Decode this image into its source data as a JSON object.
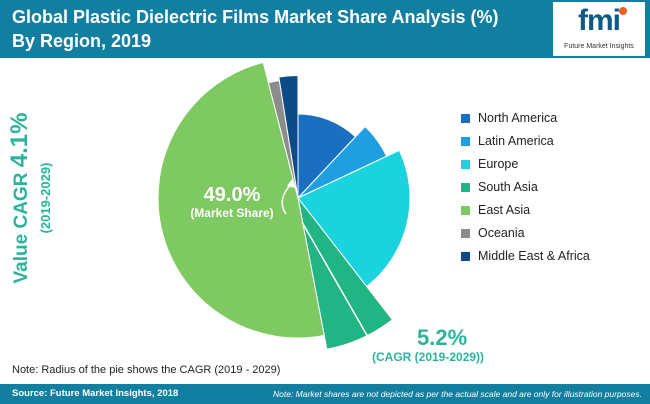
{
  "header": {
    "title": "Global Plastic Dielectric Films Market Share Analysis (%) By Region, 2019"
  },
  "logo": {
    "brand": "fmi",
    "subtitle": "Future Market Insights"
  },
  "side_cagr": {
    "prefix": "Value CAGR ",
    "value": "4.1%",
    "period": "(2019-2029)"
  },
  "annotations": {
    "share_value": "49.0%",
    "share_label": "(Market Share)",
    "cagr_value": "5.2%",
    "cagr_label": "(CAGR (2019-2029))"
  },
  "note": "Note: Radius of the pie shows the CAGR (2019 - 2029)",
  "footer": {
    "source": "Source: Future Market Insights, 2018",
    "disclaimer": "Note: Market shares are not depicted as per the actual scale and are only for illustration purposes."
  },
  "colors": {
    "header": "#137fa0",
    "accent": "#2bb39b"
  },
  "chart_data": {
    "type": "pie",
    "title": "Global Plastic Dielectric Films Market Share Analysis (%) By Region, 2019",
    "legend_position": "right",
    "categories": [
      "North America",
      "Latin America",
      "Europe",
      "South Asia",
      "East Asia",
      "Oceania",
      "Middle East & Africa"
    ],
    "shares": [
      12.0,
      6.0,
      21.5,
      7.5,
      49.0,
      1.5,
      2.5
    ],
    "radii": [
      1.2,
      1.4,
      1.6,
      2.2,
      2.0,
      1.7,
      1.75
    ],
    "colors": [
      "#1b6fc0",
      "#1f9fe0",
      "#1ad3dc",
      "#21b484",
      "#7fc962",
      "#8c8c8c",
      "#0c4b86"
    ]
  }
}
